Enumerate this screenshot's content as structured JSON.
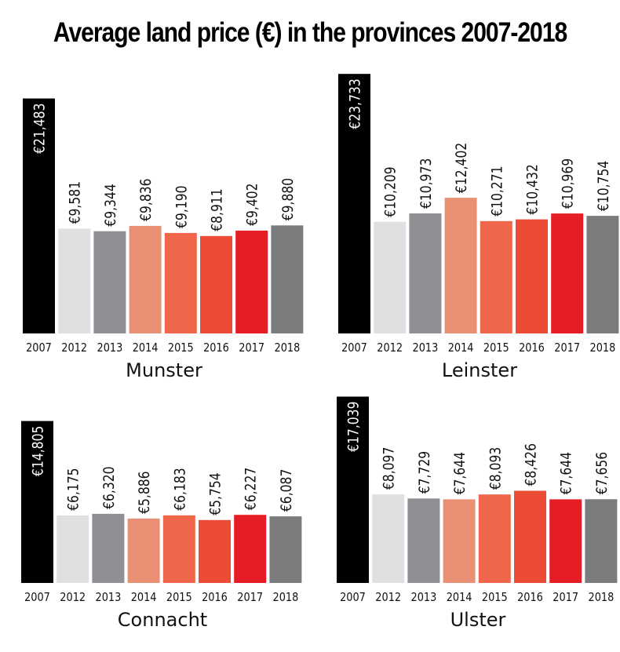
{
  "title": "Average land price (€) in the provinces 2007-2018",
  "colors": {
    "2007": "#000000",
    "2012": "#dfe0e1",
    "2013": "#8f9093",
    "2014": "#e88f74",
    "2015": "#ef664b",
    "2016": "#ec4c36",
    "2017": "#e71d25",
    "2018": "#7b7c7e"
  },
  "chart_data": [
    {
      "type": "bar",
      "title": "Munster",
      "categories": [
        "2007",
        "2012",
        "2013",
        "2014",
        "2015",
        "2016",
        "2017",
        "2018"
      ],
      "values": [
        21483,
        9581,
        9344,
        9836,
        9190,
        8911,
        9402,
        9880
      ],
      "labels": [
        "€21,483",
        "€9,581",
        "€9,344",
        "€9,836",
        "€9,190",
        "€8,911",
        "€9,402",
        "€9,880"
      ],
      "xlabel": "",
      "ylabel": "",
      "grid": false
    },
    {
      "type": "bar",
      "title": "Leinster",
      "categories": [
        "2007",
        "2012",
        "2013",
        "2014",
        "2015",
        "2016",
        "2017",
        "2018"
      ],
      "values": [
        23733,
        10209,
        10973,
        12402,
        10271,
        10432,
        10969,
        10754
      ],
      "labels": [
        "€23,733",
        "€10,209",
        "€10,973",
        "€12,402",
        "€10,271",
        "€10,432",
        "€10,969",
        "€10,754"
      ],
      "xlabel": "",
      "ylabel": "",
      "grid": false
    },
    {
      "type": "bar",
      "title": "Connacht",
      "categories": [
        "2007",
        "2012",
        "2013",
        "2014",
        "2015",
        "2016",
        "2017",
        "2018"
      ],
      "values": [
        14805,
        6175,
        6320,
        5886,
        6183,
        5754,
        6227,
        6087
      ],
      "labels": [
        "€14,805",
        "€6,175",
        "€6,320",
        "€5,886",
        "€6,183",
        "€5,754",
        "€6,227",
        "€6,087"
      ],
      "xlabel": "",
      "ylabel": "",
      "grid": false
    },
    {
      "type": "bar",
      "title": "Ulster",
      "categories": [
        "2007",
        "2012",
        "2013",
        "2014",
        "2015",
        "2016",
        "2017",
        "2018"
      ],
      "values": [
        17039,
        8097,
        7729,
        7644,
        8093,
        8426,
        7644,
        7656
      ],
      "labels": [
        "€17,039",
        "€8,097",
        "€7,729",
        "€7,644",
        "€8,093",
        "€8,426",
        "€7,644",
        "€7,656"
      ],
      "xlabel": "",
      "ylabel": "",
      "grid": false
    }
  ]
}
